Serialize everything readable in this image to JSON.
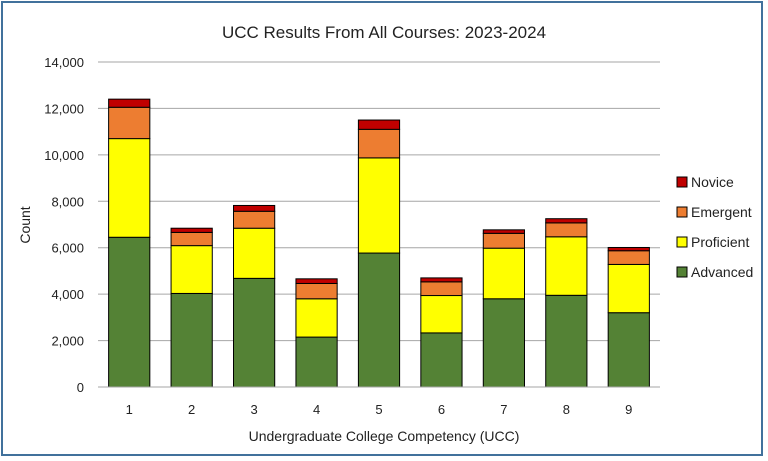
{
  "chart_data": {
    "type": "bar",
    "stacked": true,
    "title": "UCC Results From All Courses: 2023-2024",
    "xlabel": "Undergraduate College Competency (UCC)",
    "ylabel": "Count",
    "ylim": [
      0,
      14000
    ],
    "yticks": [
      0,
      2000,
      4000,
      6000,
      8000,
      10000,
      12000,
      14000
    ],
    "ytick_labels": [
      "0",
      "2,000",
      "4,000",
      "6,000",
      "8,000",
      "10,000",
      "12,000",
      "14,000"
    ],
    "grid": true,
    "legend_position": "right",
    "categories": [
      "1",
      "2",
      "3",
      "4",
      "5",
      "6",
      "7",
      "8",
      "9"
    ],
    "series": [
      {
        "name": "Advanced",
        "color": "#548235",
        "values": [
          6450,
          4030,
          4680,
          2150,
          5770,
          2330,
          3800,
          3950,
          3200
        ]
      },
      {
        "name": "Proficient",
        "color": "#ffff00",
        "values": [
          4250,
          2060,
          2160,
          1650,
          4100,
          1610,
          2180,
          2520,
          2080
        ]
      },
      {
        "name": "Emergent",
        "color": "#ed7d31",
        "values": [
          1350,
          570,
          730,
          660,
          1230,
          590,
          640,
          600,
          590
        ]
      },
      {
        "name": "Novice",
        "color": "#c00000",
        "values": [
          350,
          180,
          250,
          200,
          400,
          170,
          150,
          180,
          140
        ]
      }
    ],
    "legend_order": [
      "Novice",
      "Emergent",
      "Proficient",
      "Advanced"
    ]
  }
}
